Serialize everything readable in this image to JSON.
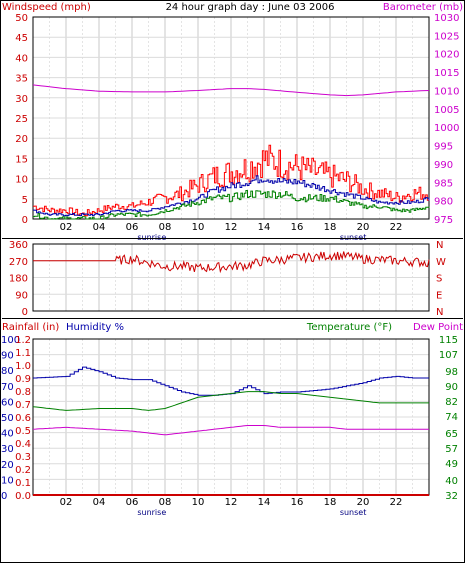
{
  "chart_data": [
    {
      "type": "line",
      "title": "24 hour graph day : June 03 2006",
      "left_axis_label": "Windspeed (mph)",
      "right_axis_label": "Barometer (mb)",
      "left_ticks": [
        "50",
        "45",
        "40",
        "35",
        "30",
        "25",
        "20",
        "15",
        "10",
        "5",
        "0"
      ],
      "right_ticks": [
        "1030",
        "1025",
        "1020",
        "1015",
        "1010",
        "1005",
        "1000",
        "995",
        "990",
        "985",
        "980",
        "975"
      ],
      "ylim_left": [
        0,
        50
      ],
      "ylim_right": [
        975,
        1030
      ],
      "x_ticks": [
        "02",
        "04",
        "06",
        "08",
        "10",
        "12",
        "14",
        "16",
        "18",
        "20",
        "22"
      ],
      "x_markers": [
        "sunrise",
        "sunset"
      ],
      "colors": {
        "gust": "#ff0000",
        "avg": "#0000aa",
        "wind": "#008000",
        "baro": "#cc00cc"
      },
      "series": [
        {
          "label": "gust",
          "x": [
            0,
            1,
            2,
            3,
            4,
            5,
            6,
            7,
            8,
            9,
            10,
            11,
            12,
            13,
            14,
            15,
            16,
            17,
            18,
            19,
            20,
            21,
            22,
            23,
            24
          ],
          "values": [
            3,
            2,
            2,
            1,
            2,
            3,
            3,
            4,
            5,
            6,
            8,
            10,
            11,
            12,
            14,
            13,
            12,
            11,
            10,
            9,
            7,
            6,
            5,
            6,
            6
          ]
        },
        {
          "label": "avg",
          "x": [
            0,
            1,
            2,
            3,
            4,
            5,
            6,
            7,
            8,
            9,
            10,
            11,
            12,
            13,
            14,
            15,
            16,
            17,
            18,
            19,
            20,
            21,
            22,
            23,
            24
          ],
          "values": [
            2,
            1,
            1,
            1,
            1,
            2,
            2,
            2,
            3,
            4,
            5,
            7,
            8,
            9,
            10,
            9,
            9,
            8,
            7,
            6,
            5,
            4,
            4,
            4,
            5
          ]
        },
        {
          "label": "wind",
          "x": [
            0,
            1,
            2,
            3,
            4,
            5,
            6,
            7,
            8,
            9,
            10,
            11,
            12,
            13,
            14,
            15,
            16,
            17,
            18,
            19,
            20,
            21,
            22,
            23,
            24
          ],
          "values": [
            1,
            0,
            0,
            0,
            0,
            1,
            1,
            1,
            2,
            3,
            4,
            5,
            5,
            6,
            6,
            6,
            5,
            5,
            5,
            4,
            3,
            3,
            2,
            2,
            3
          ]
        },
        {
          "label": "baro",
          "x": [
            0,
            2,
            4,
            6,
            8,
            10,
            12,
            13,
            14,
            16,
            18,
            19,
            20,
            22,
            24
          ],
          "values": [
            1011.5,
            1010.5,
            1009.8,
            1009.6,
            1009.6,
            1010.0,
            1010.5,
            1010.5,
            1010.3,
            1009.5,
            1008.8,
            1008.6,
            1008.8,
            1009.6,
            1010.0
          ]
        }
      ]
    },
    {
      "type": "line",
      "left_ticks": [
        "360",
        "270",
        "180",
        "90",
        "0"
      ],
      "right_ticks": [
        "N",
        "W",
        "S",
        "E",
        "N"
      ],
      "ylim": [
        0,
        360
      ],
      "color": "#cc0000",
      "series": [
        {
          "label": "direction",
          "x": [
            0,
            5,
            6,
            7,
            8,
            9,
            10,
            11,
            12,
            13,
            14,
            15,
            16,
            17,
            18,
            19,
            20,
            21,
            22,
            23,
            24
          ],
          "values": [
            270,
            270,
            280,
            260,
            240,
            240,
            230,
            235,
            240,
            245,
            270,
            275,
            285,
            290,
            300,
            295,
            280,
            275,
            270,
            265,
            260
          ]
        }
      ]
    },
    {
      "type": "line",
      "labels": [
        "Rainfall (in)",
        "Humidity %",
        "Temperature (°F)",
        "Dew Point"
      ],
      "rain_ticks": [
        "1.2",
        "1.1",
        "1.0",
        "0.9",
        "0.8",
        "0.7",
        "0.6",
        "0.5",
        "0.4",
        "0.3",
        "0.2",
        "0.1",
        "0.0"
      ],
      "humidity_ticks": [
        "100",
        "90",
        "80",
        "70",
        "60",
        "50",
        "40",
        "30",
        "20",
        "10",
        "0"
      ],
      "temp_ticks": [
        "115",
        "107",
        "98",
        "90",
        "82",
        "74",
        "65",
        "57",
        "49",
        "40",
        "32"
      ],
      "ylim_humidity": [
        0,
        100
      ],
      "ylim_temp": [
        32,
        115
      ],
      "x_ticks": [
        "02",
        "04",
        "06",
        "08",
        "10",
        "12",
        "14",
        "16",
        "18",
        "20",
        "22"
      ],
      "x_markers": [
        "sunrise",
        "sunset"
      ],
      "colors": {
        "rain": "#cc0000",
        "humidity": "#0000aa",
        "temp": "#008000",
        "dew": "#cc00cc",
        "rain_label": "#cc0000",
        "temp_label": "#008000",
        "dew_label": "#cc00cc"
      },
      "series": [
        {
          "label": "humidity",
          "x": [
            0,
            2,
            3,
            4,
            5,
            6,
            7,
            8,
            9,
            10,
            11,
            12,
            13,
            14,
            15,
            16,
            17,
            18,
            19,
            20,
            21,
            22,
            23,
            24
          ],
          "values": [
            75,
            76,
            82,
            79,
            75,
            74,
            74,
            70,
            66,
            64,
            64,
            65,
            70,
            65,
            66,
            66,
            67,
            68,
            70,
            72,
            75,
            76,
            75,
            75
          ]
        },
        {
          "label": "temperature",
          "x": [
            0,
            2,
            4,
            6,
            7,
            8,
            9,
            10,
            11,
            12,
            13,
            14,
            15,
            16,
            17,
            18,
            19,
            20,
            21,
            22,
            23,
            24
          ],
          "values": [
            79,
            77,
            78,
            78,
            77,
            78,
            81,
            84,
            85,
            86,
            87,
            87,
            86,
            86,
            85,
            84,
            83,
            82,
            81,
            81,
            81,
            81
          ]
        },
        {
          "label": "dewpoint",
          "x": [
            0,
            2,
            4,
            6,
            8,
            9,
            10,
            11,
            12,
            13,
            14,
            15,
            16,
            17,
            18,
            19,
            20,
            21,
            22,
            23,
            24
          ],
          "values": [
            67,
            68,
            67,
            66,
            64,
            65,
            66,
            67,
            68,
            69,
            69,
            68,
            68,
            68,
            68,
            67,
            67,
            67,
            67,
            67,
            67
          ]
        },
        {
          "label": "rainfall",
          "x": [
            0,
            24
          ],
          "values": [
            0,
            0
          ]
        }
      ]
    }
  ]
}
